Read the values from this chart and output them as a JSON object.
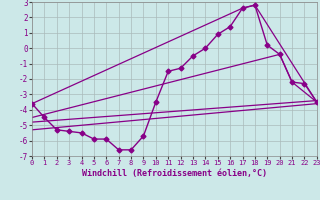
{
  "xlabel": "Windchill (Refroidissement éolien,°C)",
  "background_color": "#cce8e8",
  "grid_color": "#aabbbb",
  "line_color": "#880088",
  "xlim": [
    0,
    23
  ],
  "ylim": [
    -7,
    3
  ],
  "yticks": [
    -7,
    -6,
    -5,
    -4,
    -3,
    -2,
    -1,
    0,
    1,
    2,
    3
  ],
  "xticks": [
    0,
    1,
    2,
    3,
    4,
    5,
    6,
    7,
    8,
    9,
    10,
    11,
    12,
    13,
    14,
    15,
    16,
    17,
    18,
    19,
    20,
    21,
    22,
    23
  ],
  "series": [
    {
      "x": [
        0,
        1,
        2,
        3,
        4,
        5,
        6,
        7,
        8,
        9,
        10,
        11,
        12,
        13,
        14,
        15,
        16,
        17,
        18,
        19,
        20,
        21,
        22,
        23
      ],
      "y": [
        -3.6,
        -4.5,
        -5.3,
        -5.4,
        -5.5,
        -5.9,
        -5.9,
        -6.6,
        -6.6,
        -5.7,
        -3.5,
        -1.5,
        -1.3,
        -0.5,
        0.0,
        0.9,
        1.4,
        2.6,
        2.8,
        0.2,
        -0.4,
        -2.2,
        -2.3,
        -3.5
      ],
      "marker": "D",
      "markersize": 2.5,
      "linewidth": 1.0
    },
    {
      "x": [
        0,
        17,
        18,
        23
      ],
      "y": [
        -3.6,
        2.6,
        2.8,
        -3.5
      ],
      "marker": null,
      "linewidth": 0.9
    },
    {
      "x": [
        0,
        20,
        21,
        23
      ],
      "y": [
        -4.5,
        -0.4,
        -2.2,
        -3.5
      ],
      "marker": null,
      "linewidth": 0.9
    },
    {
      "x": [
        0,
        23
      ],
      "y": [
        -4.8,
        -3.4
      ],
      "marker": null,
      "linewidth": 0.9
    },
    {
      "x": [
        0,
        23
      ],
      "y": [
        -5.3,
        -3.6
      ],
      "marker": null,
      "linewidth": 0.9
    }
  ]
}
